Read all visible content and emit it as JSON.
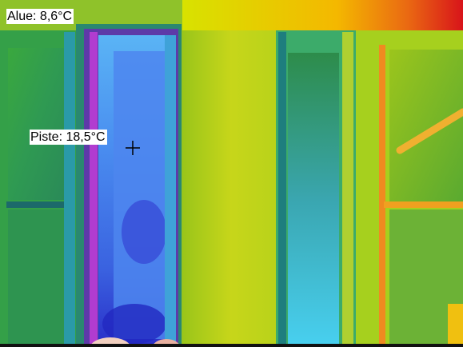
{
  "overlays": {
    "area_label": "Alue: 8,6°C",
    "spot_label": "Piste: 18,5°C"
  },
  "palette": {
    "cold": "#1c2fd0",
    "cool": "#3aa0ff",
    "mid": "#38b24a",
    "warm": "#d8e200",
    "hot": "#e53a1a"
  },
  "icons": {
    "spot_marker": "crosshair-icon"
  }
}
